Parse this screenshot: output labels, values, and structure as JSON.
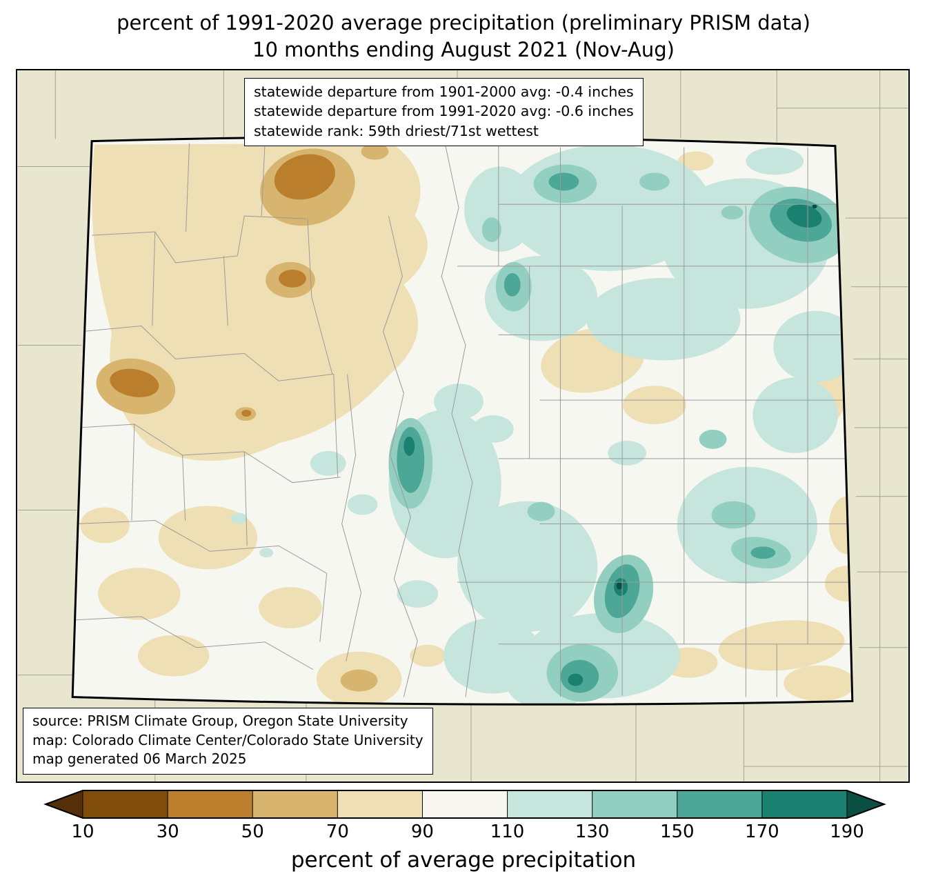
{
  "title": {
    "line1": "percent of 1991-2020 average precipitation (preliminary PRISM data)",
    "line2": "10 months ending August 2021 (Nov-Aug)"
  },
  "stats_box": {
    "line1": "statewide departure from 1901-2000 avg: -0.4 inches",
    "line2": "statewide departure from 1991-2020 avg: -0.6 inches",
    "line3": "statewide rank: 59th driest/71st wettest"
  },
  "source_box": {
    "line1": "source: PRISM Climate Group, Oregon State University",
    "line2": "map: Colorado Climate Center/Colorado State University",
    "line3": "map generated 06 March 2025"
  },
  "colorbar": {
    "label": "percent of average precipitation",
    "ticks": [
      "10",
      "30",
      "50",
      "70",
      "90",
      "110",
      "130",
      "150",
      "170",
      "190"
    ],
    "segment_colors": [
      "#7f4c0c",
      "#bb7e2c",
      "#d7b56e",
      "#eee0b4",
      "#f8f8f1",
      "#c6e5dd",
      "#93cfc1",
      "#4da796",
      "#1a8170"
    ],
    "under_color": "#542f07",
    "over_color": "#0b4f42"
  },
  "palette": {
    "p30_50": "#bb7e2c",
    "p50_70": "#d7b56e",
    "p70_90": "#eee0b4",
    "p110_130": "#c6e5dd",
    "p130_150": "#93cfc1",
    "p150_170": "#4da796",
    "p170_190": "#1a8170",
    "over": "#0b4f42"
  },
  "map": {
    "background_color": "#e9e6d0",
    "state_fill": "#f7f7f1",
    "county_line_color": "#9a9a9a",
    "neighbor_line_color": "#a3a396",
    "border_color": "#000000"
  }
}
